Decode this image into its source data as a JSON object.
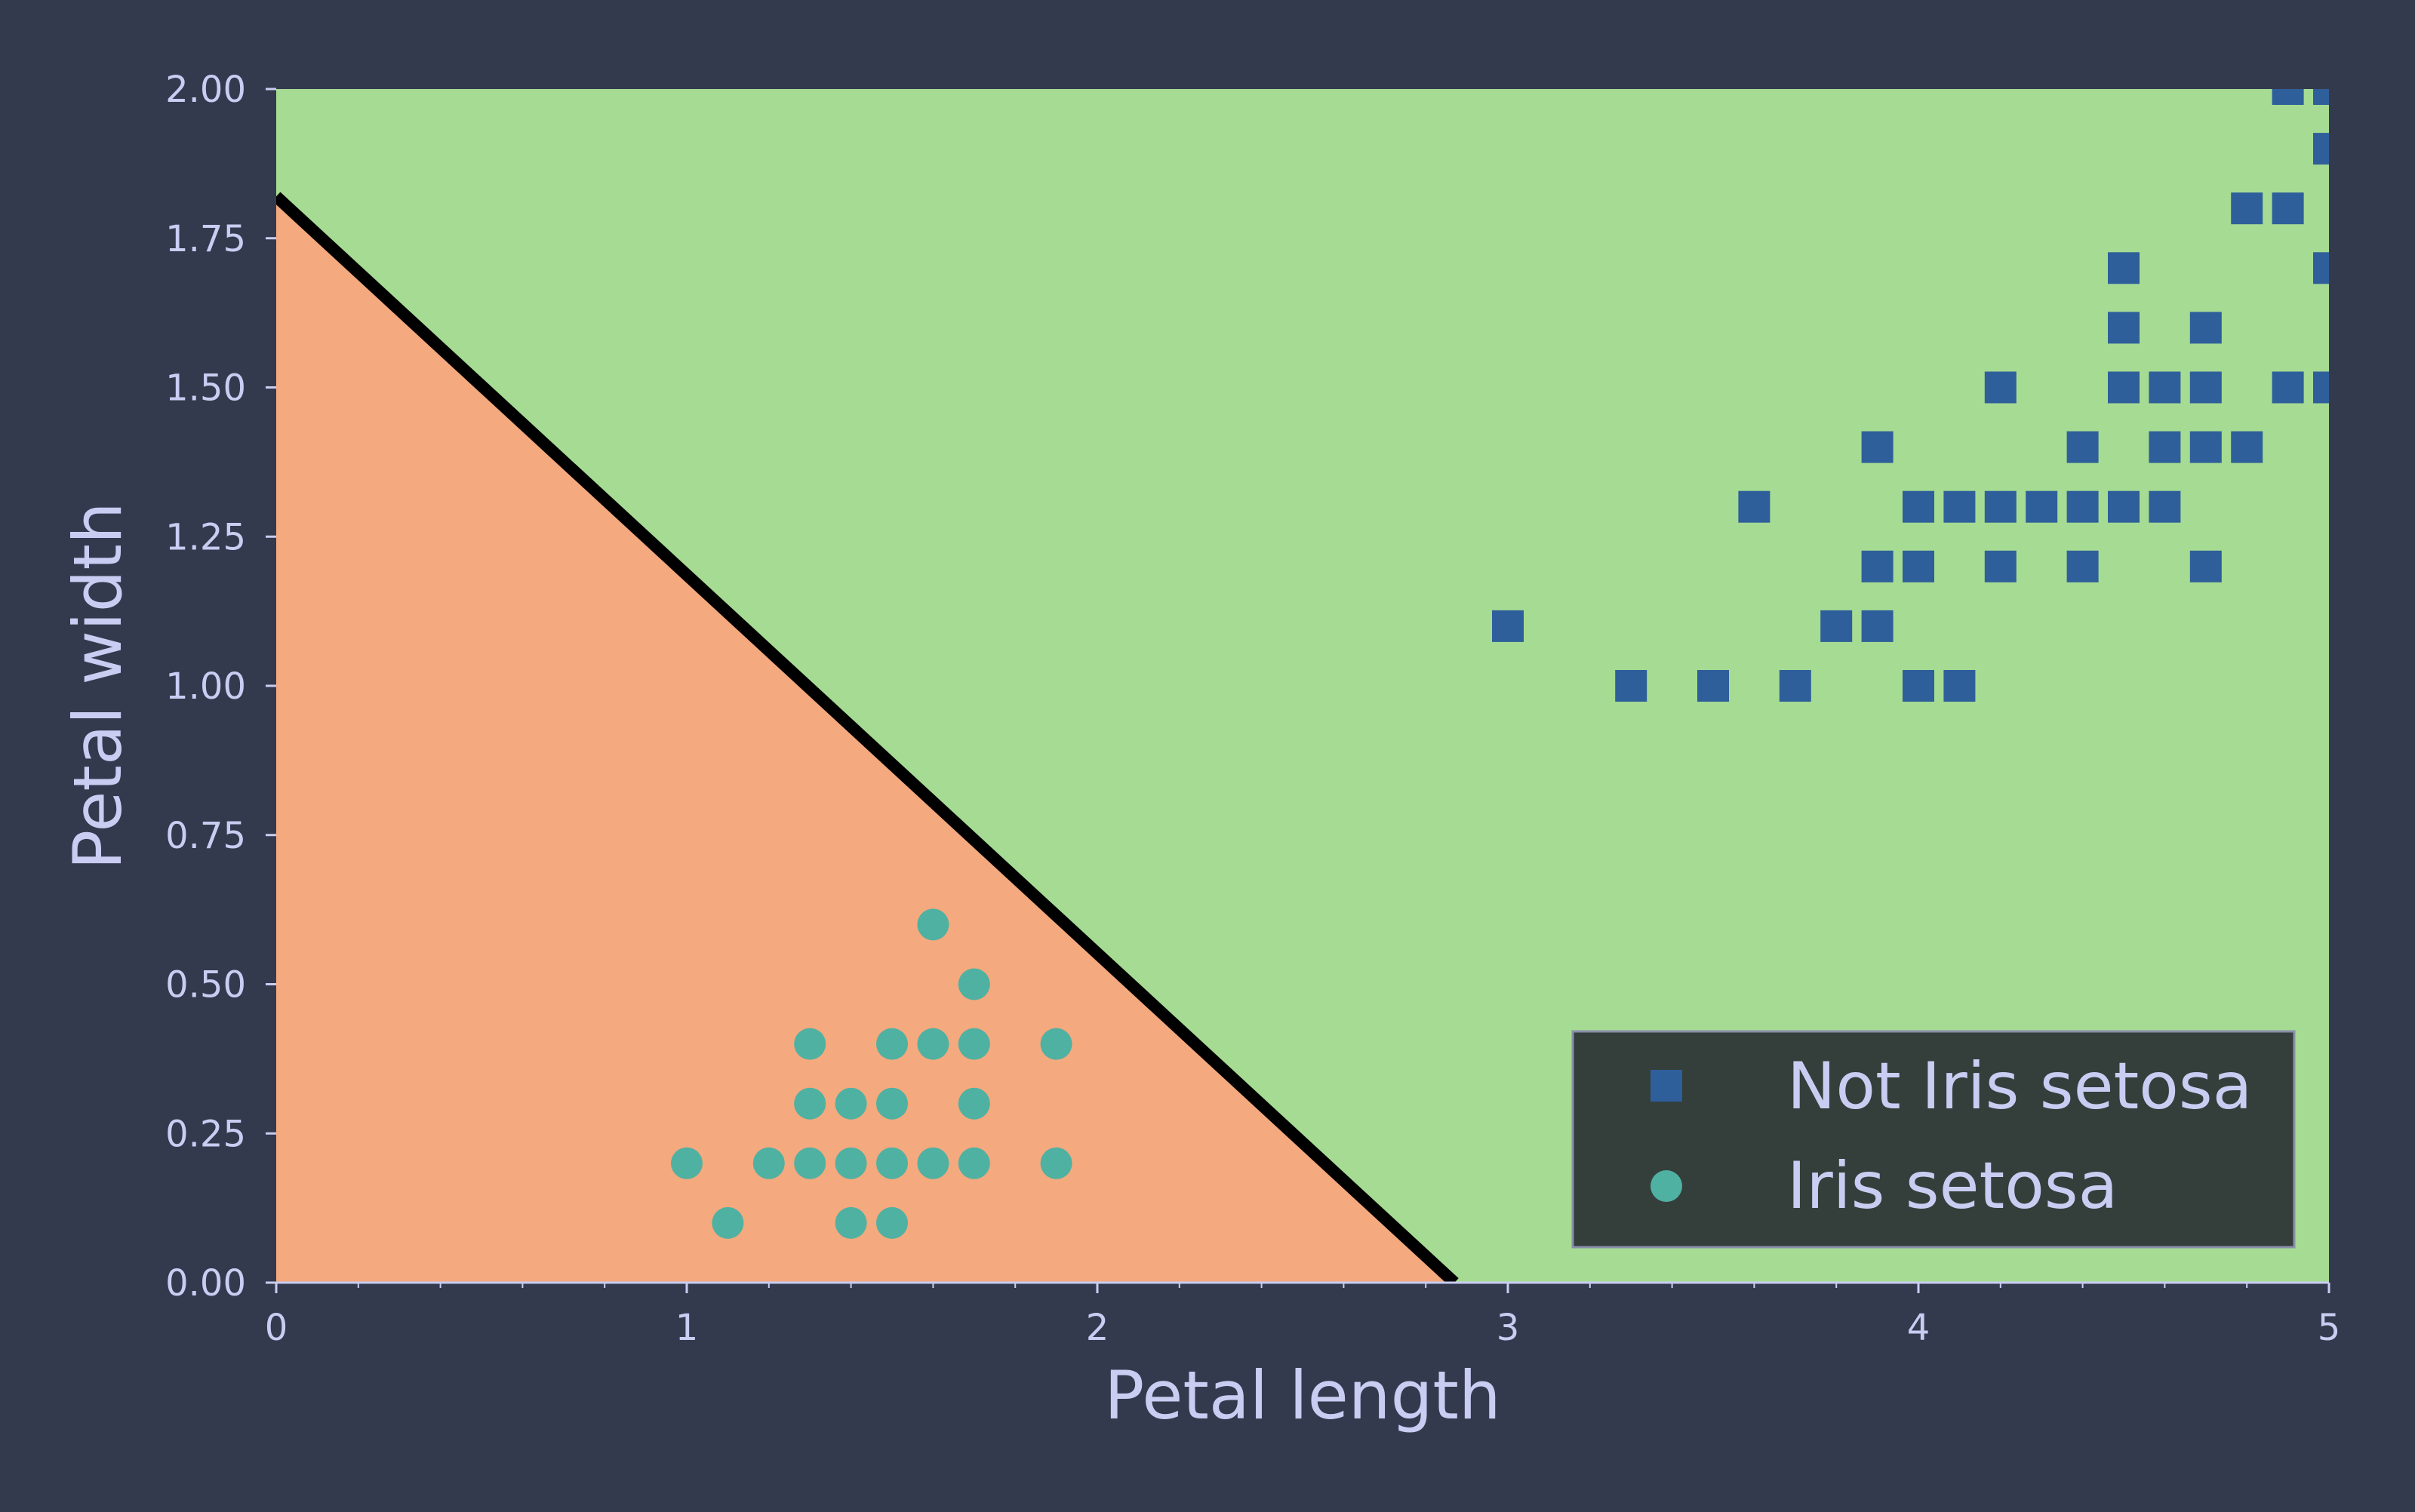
{
  "chart_data": {
    "type": "scatter",
    "title": "",
    "xlabel": "Petal length",
    "ylabel": "Petal width",
    "xlim": [
      0,
      5
    ],
    "ylim": [
      0,
      2
    ],
    "x_ticks": [
      "0",
      "1",
      "2",
      "3",
      "4",
      "5"
    ],
    "y_ticks": [
      "0.00",
      "0.25",
      "0.50",
      "0.75",
      "1.00",
      "1.25",
      "1.50",
      "1.75",
      "2.00"
    ],
    "grid": false,
    "legend_position": "bottom-right",
    "decision_boundary": {
      "points": [
        [
          0,
          1.82
        ],
        [
          2.87,
          0
        ]
      ],
      "color": "#000000"
    },
    "regions": [
      {
        "label": "Iris setosa",
        "side": "below",
        "color": "#f4a97e"
      },
      {
        "label": "Not Iris setosa",
        "side": "above",
        "color": "#a6db93"
      }
    ],
    "series": [
      {
        "name": "Not Iris setosa",
        "marker": "square",
        "color": "#2e5f9a",
        "points": [
          [
            3.0,
            1.1
          ],
          [
            3.3,
            1.0
          ],
          [
            3.5,
            1.0
          ],
          [
            3.6,
            1.3
          ],
          [
            3.7,
            1.0
          ],
          [
            3.8,
            1.1
          ],
          [
            3.9,
            1.1
          ],
          [
            3.9,
            1.2
          ],
          [
            3.9,
            1.4
          ],
          [
            4.0,
            1.0
          ],
          [
            4.0,
            1.2
          ],
          [
            4.0,
            1.3
          ],
          [
            4.1,
            1.0
          ],
          [
            4.1,
            1.3
          ],
          [
            4.2,
            1.2
          ],
          [
            4.2,
            1.3
          ],
          [
            4.2,
            1.5
          ],
          [
            4.3,
            1.3
          ],
          [
            4.4,
            1.2
          ],
          [
            4.4,
            1.3
          ],
          [
            4.4,
            1.4
          ],
          [
            4.5,
            1.3
          ],
          [
            4.5,
            1.5
          ],
          [
            4.5,
            1.6
          ],
          [
            4.5,
            1.7
          ],
          [
            4.6,
            1.3
          ],
          [
            4.6,
            1.4
          ],
          [
            4.6,
            1.5
          ],
          [
            4.7,
            1.2
          ],
          [
            4.7,
            1.4
          ],
          [
            4.7,
            1.5
          ],
          [
            4.7,
            1.6
          ],
          [
            4.8,
            1.4
          ],
          [
            4.8,
            1.8
          ],
          [
            4.9,
            1.5
          ],
          [
            4.9,
            1.8
          ],
          [
            4.9,
            2.0
          ],
          [
            5.0,
            1.5
          ],
          [
            5.0,
            1.7
          ],
          [
            5.0,
            1.9
          ],
          [
            5.0,
            2.0
          ]
        ]
      },
      {
        "name": "Iris setosa",
        "marker": "circle",
        "color": "#4fb1a1",
        "points": [
          [
            1.0,
            0.2
          ],
          [
            1.1,
            0.1
          ],
          [
            1.2,
            0.2
          ],
          [
            1.3,
            0.2
          ],
          [
            1.3,
            0.3
          ],
          [
            1.3,
            0.4
          ],
          [
            1.4,
            0.1
          ],
          [
            1.4,
            0.2
          ],
          [
            1.4,
            0.3
          ],
          [
            1.5,
            0.1
          ],
          [
            1.5,
            0.2
          ],
          [
            1.5,
            0.3
          ],
          [
            1.5,
            0.4
          ],
          [
            1.6,
            0.2
          ],
          [
            1.6,
            0.4
          ],
          [
            1.6,
            0.6
          ],
          [
            1.7,
            0.2
          ],
          [
            1.7,
            0.3
          ],
          [
            1.7,
            0.4
          ],
          [
            1.7,
            0.5
          ],
          [
            1.9,
            0.2
          ],
          [
            1.9,
            0.4
          ]
        ]
      }
    ]
  }
}
